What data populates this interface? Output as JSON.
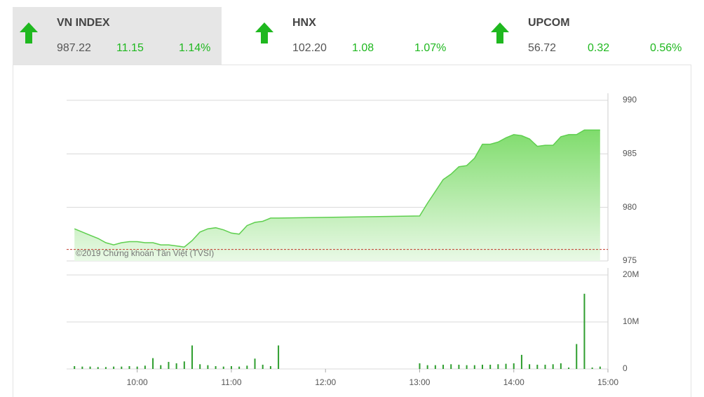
{
  "indices": [
    {
      "name": "VN INDEX",
      "value": "987.22",
      "change": "11.15",
      "percent": "1.14%"
    },
    {
      "name": "HNX",
      "value": "102.20",
      "change": "1.08",
      "percent": "1.07%"
    },
    {
      "name": "UPCOM",
      "value": "56.72",
      "change": "0.32",
      "percent": "0.56%"
    }
  ],
  "chart_data": [
    {
      "type": "area",
      "annotation": "©2019 Chứng khoán Tân Việt (TVSI)",
      "color": "#5fcf4f",
      "x": [
        "09:20",
        "09:25",
        "09:30",
        "09:35",
        "09:40",
        "09:45",
        "09:50",
        "09:55",
        "10:00",
        "10:05",
        "10:10",
        "10:15",
        "10:20",
        "10:25",
        "10:30",
        "10:35",
        "10:40",
        "10:45",
        "10:50",
        "10:55",
        "11:00",
        "11:05",
        "11:10",
        "11:15",
        "11:20",
        "11:25",
        "11:30",
        "13:00",
        "13:05",
        "13:10",
        "13:15",
        "13:20",
        "13:25",
        "13:30",
        "13:35",
        "13:40",
        "13:45",
        "13:50",
        "13:55",
        "14:00",
        "14:05",
        "14:10",
        "14:15",
        "14:20",
        "14:25",
        "14:30",
        "14:35",
        "14:40",
        "14:45",
        "14:55"
      ],
      "values": [
        978.0,
        977.7,
        977.4,
        977.1,
        976.7,
        976.5,
        976.7,
        976.8,
        976.8,
        976.7,
        976.7,
        976.5,
        976.5,
        976.4,
        976.3,
        976.9,
        977.7,
        978.0,
        978.1,
        977.9,
        977.6,
        977.5,
        978.3,
        978.6,
        978.7,
        979.0,
        979.0,
        979.2,
        980.4,
        981.5,
        982.6,
        983.1,
        983.8,
        983.9,
        984.6,
        985.9,
        985.9,
        986.1,
        986.5,
        986.8,
        986.7,
        986.4,
        985.7,
        985.8,
        985.8,
        986.6,
        986.8,
        986.8,
        987.22,
        987.22
      ],
      "reference_line": 976.07,
      "xlim": [
        "09:15",
        "15:00"
      ],
      "ylim": [
        975,
        990
      ],
      "yticks": [
        975,
        980,
        985,
        990
      ],
      "grid": true
    },
    {
      "type": "bar",
      "color": "#2e9e2e",
      "x": [
        "09:20",
        "09:25",
        "09:30",
        "09:35",
        "09:40",
        "09:45",
        "09:50",
        "09:55",
        "10:00",
        "10:05",
        "10:10",
        "10:15",
        "10:20",
        "10:25",
        "10:30",
        "10:35",
        "10:40",
        "10:45",
        "10:50",
        "10:55",
        "11:00",
        "11:05",
        "11:10",
        "11:15",
        "11:20",
        "11:25",
        "11:30",
        "13:00",
        "13:05",
        "13:10",
        "13:15",
        "13:20",
        "13:25",
        "13:30",
        "13:35",
        "13:40",
        "13:45",
        "13:50",
        "13:55",
        "14:00",
        "14:05",
        "14:10",
        "14:15",
        "14:20",
        "14:25",
        "14:30",
        "14:35",
        "14:40",
        "14:45",
        "14:50",
        "14:55"
      ],
      "values": [
        600000,
        500000,
        500000,
        400000,
        400000,
        500000,
        500000,
        600000,
        500000,
        700000,
        2300000,
        800000,
        1500000,
        1200000,
        1600000,
        5000000,
        1000000,
        800000,
        600000,
        500000,
        600000,
        500000,
        700000,
        2200000,
        900000,
        600000,
        5000000,
        1200000,
        800000,
        800000,
        900000,
        1000000,
        900000,
        800000,
        800000,
        900000,
        900000,
        1000000,
        1100000,
        1200000,
        3000000,
        1000000,
        900000,
        900000,
        1000000,
        1200000,
        300000,
        5300000,
        16000000,
        300000,
        500000
      ],
      "xlim": [
        "09:15",
        "15:00"
      ],
      "xticks": [
        "10:00",
        "11:00",
        "12:00",
        "13:00",
        "14:00",
        "15:00"
      ],
      "ylim": [
        0,
        20000000
      ],
      "yticks": [
        0,
        {
          "value": 10000000,
          "label": "10M"
        },
        {
          "value": 20000000,
          "label": "20M"
        }
      ],
      "grid": true
    }
  ]
}
